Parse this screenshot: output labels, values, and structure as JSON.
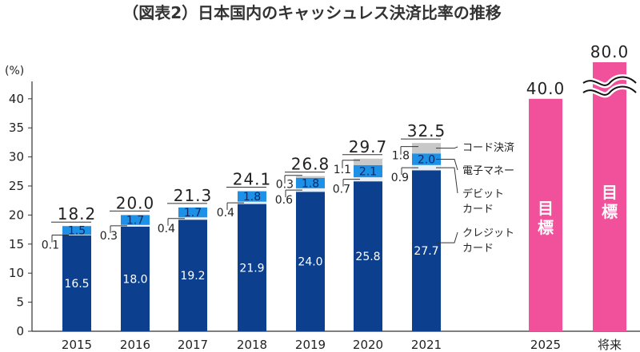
{
  "title": "（図表2）日本国内のキャッシュレス決済比率の推移",
  "chart_data": {
    "type": "bar",
    "stacked": true,
    "title": "（図表2）日本国内のキャッシュレス決済比率の推移",
    "ylabel": "(%)",
    "ylim": [
      0,
      45
    ],
    "yticks": [
      0,
      5,
      10,
      15,
      20,
      25,
      30,
      35,
      40
    ],
    "categories": [
      "2015",
      "2016",
      "2017",
      "2018",
      "2019",
      "2020",
      "2021"
    ],
    "series": [
      {
        "name": "クレジットカード",
        "color": "#0d3f8f",
        "values": [
          16.5,
          18.0,
          19.2,
          21.9,
          24.0,
          25.8,
          27.7
        ]
      },
      {
        "name": "デビットカード",
        "color": "#e8eef5",
        "values": [
          0.1,
          0.3,
          0.4,
          0.4,
          0.6,
          0.7,
          0.9
        ]
      },
      {
        "name": "電子マネー",
        "color": "#1e90e6",
        "values": [
          1.5,
          1.7,
          1.7,
          1.8,
          1.8,
          2.1,
          2.0
        ]
      },
      {
        "name": "コード決済",
        "color": "#c8c8c8",
        "values": [
          0,
          0,
          0,
          0,
          0.3,
          1.1,
          1.8
        ]
      }
    ],
    "totals": [
      "18.2",
      "20.0",
      "21.3",
      "24.1",
      "26.8",
      "29.7",
      "32.5"
    ],
    "targets": [
      {
        "category": "2025",
        "value": 40.0,
        "value_label": "40.0",
        "label": "目標",
        "color": "#f0519a"
      },
      {
        "category": "将来",
        "value": 80.0,
        "value_label": "80.0",
        "label": "目標",
        "color": "#f0519a",
        "axis_break": true
      }
    ],
    "legend": [
      "コード決済",
      "電子マネー",
      "デビットカード",
      "クレジットカード"
    ]
  }
}
